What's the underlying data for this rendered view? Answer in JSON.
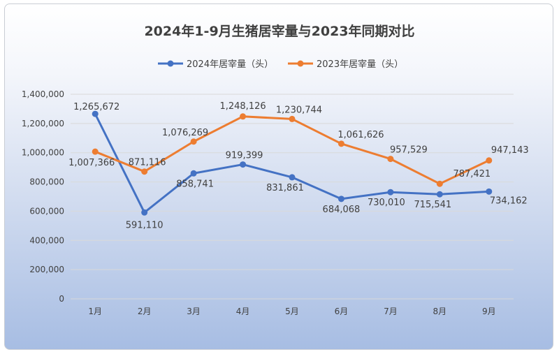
{
  "chart_data": {
    "type": "line",
    "title": "2024年1-9月生猪居宰量与2023年同期对比",
    "categories": [
      "1月",
      "2月",
      "3月",
      "4月",
      "5月",
      "6月",
      "7月",
      "8月",
      "9月"
    ],
    "series": [
      {
        "name": "2024年居宰量（头）",
        "color": "#4472c4",
        "values": [
          1265672,
          591110,
          858741,
          919399,
          831861,
          684068,
          730010,
          715541,
          734162
        ],
        "labels": [
          "1,265,672",
          "591,110",
          "858,741",
          "919,399",
          "831,861",
          "684,068",
          "730,010",
          "715,541",
          "734,162"
        ]
      },
      {
        "name": "2023年居宰量（头）",
        "color": "#ed7d31",
        "values": [
          1007366,
          871116,
          1076269,
          1248126,
          1230744,
          1061626,
          957529,
          787421,
          947143
        ],
        "labels": [
          "1,007,366",
          "871,116",
          "1,076,269",
          "1,248,126",
          "1,230,744",
          "1,061,626",
          "957,529",
          "787,421",
          "947,143"
        ]
      }
    ],
    "yticks": [
      "0",
      "200,000",
      "400,000",
      "600,000",
      "800,000",
      "1,000,000",
      "1,200,000",
      "1,400,000"
    ],
    "ylim": [
      0,
      1400000
    ],
    "grid": true,
    "legend_position": "top"
  }
}
